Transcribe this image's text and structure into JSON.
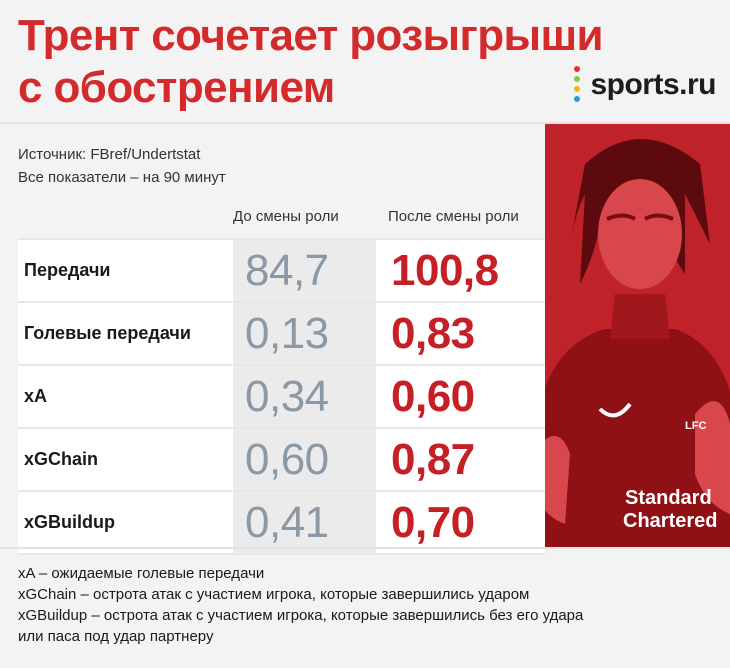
{
  "title": {
    "line1": "Трент сочетает розыгрыши",
    "line2": "с обострением"
  },
  "logo": {
    "text": "sports.ru",
    "dots": [
      "#e4303d",
      "#8cc63f",
      "#f4b41a",
      "#2a9bd7"
    ]
  },
  "meta": {
    "source": "Источник: FBref/Undertstat",
    "per90": "Все показатели – на 90 минут"
  },
  "chart_data": {
    "type": "table",
    "columns": [
      "До смены роли",
      "После смены роли"
    ],
    "rows": [
      {
        "label": "Передачи",
        "before": "84,7",
        "after": "100,8"
      },
      {
        "label": "Голевые передачи",
        "before": "0,13",
        "after": "0,83"
      },
      {
        "label": "xA",
        "before": "0,34",
        "after": "0,60"
      },
      {
        "label": "xGChain",
        "before": "0,60",
        "after": "0,87"
      },
      {
        "label": "xGBuildup",
        "before": "0,41",
        "after": "0,70"
      }
    ]
  },
  "notes": [
    "xA – ожидаемые голевые передачи",
    "xGChain – острота атак с участием игрока, которые завершились ударом",
    "xGBuildup – острота атак с участием игрока, которые завершились без его удара",
    "или паса под удар партнеру"
  ],
  "photo": {
    "shirt_text_1": "Standard",
    "shirt_text_2": "Chartered",
    "crest": "LFC",
    "colors": {
      "red": "#c8262c",
      "deep": "#8f1116",
      "light": "#e5585c"
    }
  }
}
